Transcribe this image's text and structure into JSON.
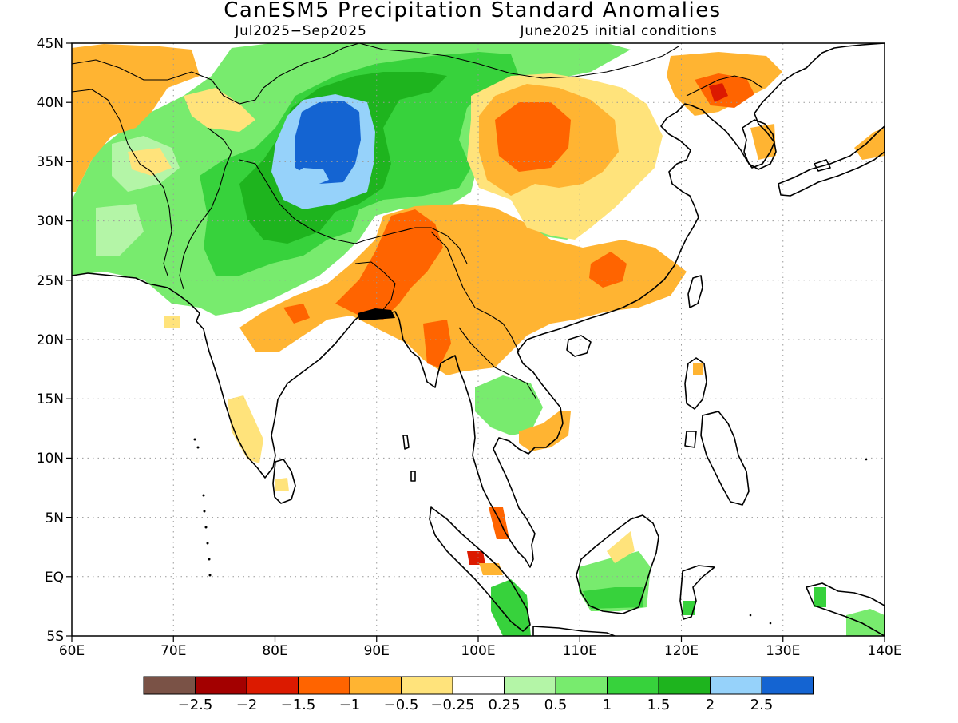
{
  "title": "CanESM5 Precipitation Standard Anomalies",
  "period": "Jul2025−Sep2025",
  "initial_conditions": "June2025 initial conditions",
  "map": {
    "lon_range": [
      60,
      140
    ],
    "lat_range": [
      -5,
      45
    ],
    "grid": true,
    "lon_ticks": [
      "60E",
      "70E",
      "80E",
      "90E",
      "100E",
      "110E",
      "120E",
      "130E",
      "140E"
    ],
    "lat_ticks": [
      "45N",
      "40N",
      "35N",
      "30N",
      "25N",
      "20N",
      "15N",
      "10N",
      "5N",
      "EQ",
      "5S"
    ]
  },
  "colorbar": {
    "colors": [
      "#7a5246",
      "#a30000",
      "#dc1a00",
      "#ff6400",
      "#ffb432",
      "#ffe37b",
      "#ffffff",
      "#b4f5a7",
      "#78eb6e",
      "#37d23c",
      "#1eb41e",
      "#96d2fa",
      "#1464d2"
    ],
    "labels": [
      "−2.5",
      "−2",
      "−1.5",
      "−1",
      "−0.5",
      "−0.25",
      "0.25",
      "0.5",
      "1",
      "1.5",
      "2",
      "2.5"
    ]
  }
}
